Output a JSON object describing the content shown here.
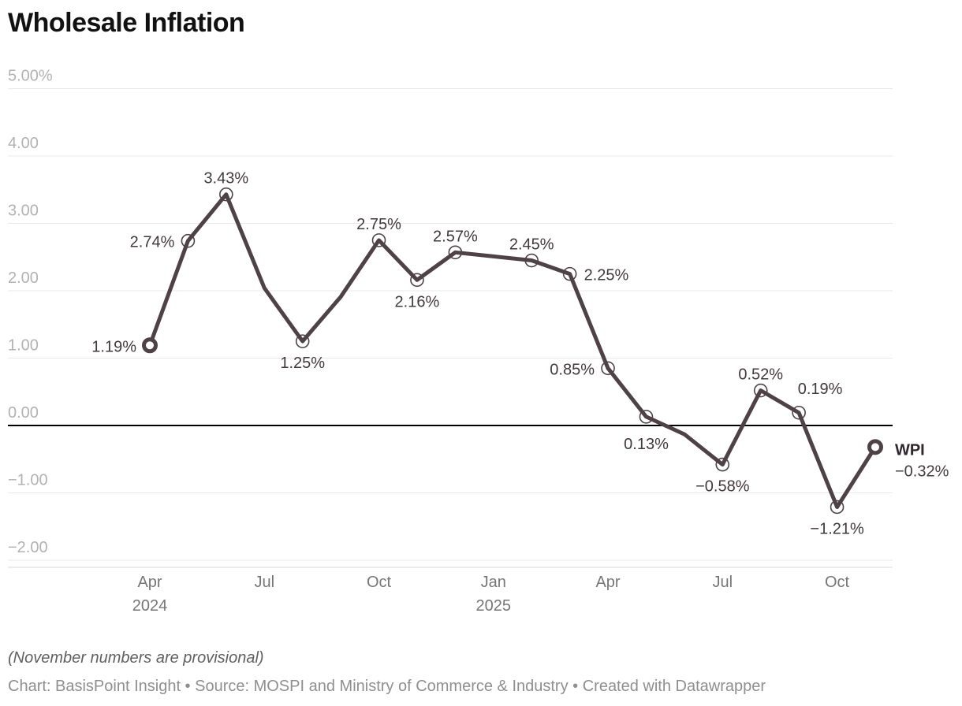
{
  "title": "Wholesale Inflation",
  "footer": {
    "note": "(November numbers are provisional)",
    "byline": "Chart: BasisPoint Insight • Source: MOSPI and Ministry of Commerce & Industry • Created with Datawrapper"
  },
  "colors": {
    "background": "#ffffff",
    "line": "#4e4247",
    "point_label": "#42383d",
    "grid": "#e9e9e9",
    "zero_line": "#000000",
    "axis_line": "#d9d9d9",
    "y_tick": "#b2b2b2",
    "x_tick": "#767676",
    "title": "#111111",
    "end_label_name": "#2f272b",
    "end_label_value": "#453c41",
    "marker_fill": "#ffffff"
  },
  "chart_data": {
    "type": "line",
    "title": "Wholesale Inflation",
    "unit": "%",
    "grid": "horizontal",
    "legend_position": "none",
    "x": [
      "Apr 2024",
      "May 2024",
      "Jun 2024",
      "Jul 2024",
      "Aug 2024",
      "Sep 2024",
      "Oct 2024",
      "Nov 2024",
      "Dec 2024",
      "Jan 2025",
      "Feb 2025",
      "Mar 2025",
      "Apr 2025",
      "May 2025",
      "Jun 2025",
      "Jul 2025",
      "Aug 2025",
      "Sep 2025",
      "Oct 2025",
      "Nov 2025"
    ],
    "series": [
      {
        "name": "WPI",
        "values": [
          1.19,
          2.74,
          3.43,
          2.04,
          1.25,
          1.91,
          2.75,
          2.16,
          2.57,
          2.51,
          2.45,
          2.25,
          0.85,
          0.13,
          -0.13,
          -0.58,
          0.52,
          0.19,
          -1.21,
          -0.32
        ]
      }
    ],
    "point_labels": [
      {
        "index": 0,
        "text": "1.19%",
        "pos": "left"
      },
      {
        "index": 1,
        "text": "2.74%",
        "pos": "left"
      },
      {
        "index": 2,
        "text": "3.43%",
        "pos": "above"
      },
      {
        "index": 4,
        "text": "1.25%",
        "pos": "below"
      },
      {
        "index": 6,
        "text": "2.75%",
        "pos": "above"
      },
      {
        "index": 7,
        "text": "2.16%",
        "pos": "below"
      },
      {
        "index": 8,
        "text": "2.57%",
        "pos": "above"
      },
      {
        "index": 10,
        "text": "2.45%",
        "pos": "above"
      },
      {
        "index": 11,
        "text": "2.25%",
        "pos": "right"
      },
      {
        "index": 12,
        "text": "0.85%",
        "pos": "left"
      },
      {
        "index": 13,
        "text": "0.13%",
        "pos": "below-far"
      },
      {
        "index": 15,
        "text": "−0.58%",
        "pos": "below"
      },
      {
        "index": 16,
        "text": "0.52%",
        "pos": "above"
      },
      {
        "index": 17,
        "text": "0.19%",
        "pos": "above-right"
      },
      {
        "index": 18,
        "text": "−1.21%",
        "pos": "below"
      }
    ],
    "emphasized_points": [
      0,
      19
    ],
    "end_label": {
      "name": "WPI",
      "value": "−0.32%"
    },
    "y_axis": {
      "tick_labels": [
        "5.00%",
        "4.00",
        "3.00",
        "2.00",
        "1.00",
        "0.00",
        "−1.00",
        "−2.00"
      ],
      "tick_values": [
        5,
        4,
        3,
        2,
        1,
        0,
        -1,
        -2
      ],
      "zero_line": true,
      "range": [
        -2.1,
        5.0
      ]
    },
    "x_axis": {
      "ticks": [
        {
          "index": 0,
          "label": "Apr",
          "sublabel": "2024"
        },
        {
          "index": 3,
          "label": "Jul"
        },
        {
          "index": 6,
          "label": "Oct"
        },
        {
          "index": 9,
          "label": "Jan",
          "sublabel": "2025"
        },
        {
          "index": 12,
          "label": "Apr"
        },
        {
          "index": 15,
          "label": "Jul"
        },
        {
          "index": 18,
          "label": "Oct"
        }
      ]
    }
  }
}
